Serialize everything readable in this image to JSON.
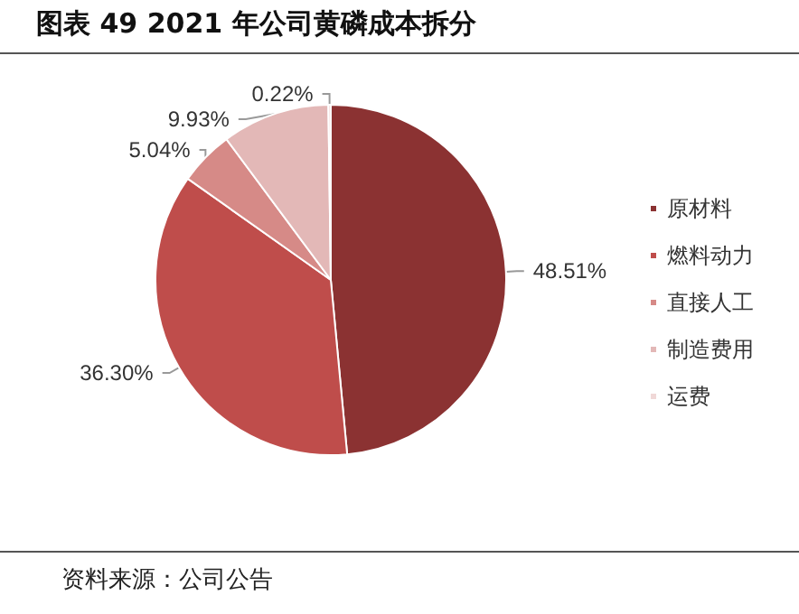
{
  "chart_data": {
    "type": "pie",
    "title": "图表 49 2021 年公司黄磷成本拆分",
    "categories": [
      "原材料",
      "燃料动力",
      "直接人工",
      "制造费用",
      "运费"
    ],
    "values": [
      48.51,
      36.3,
      5.04,
      9.93,
      0.22
    ],
    "value_labels": [
      "48.51%",
      "36.30%",
      "5.04%",
      "9.93%",
      "0.22%"
    ],
    "colors": [
      "#8b3232",
      "#bf4d4b",
      "#d68a87",
      "#e3b8b7",
      "#f0d8d7"
    ],
    "legend": "right",
    "annotations": [
      "资料来源：公司公告"
    ]
  }
}
